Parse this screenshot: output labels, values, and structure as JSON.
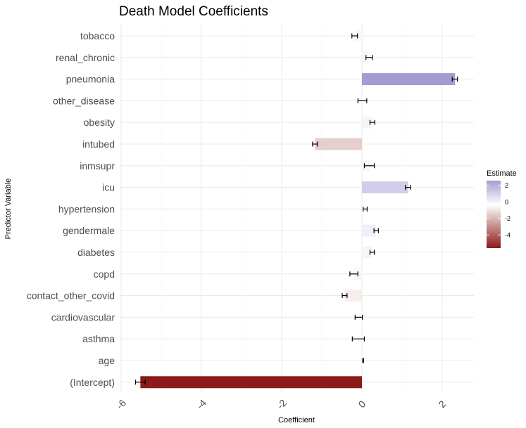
{
  "chart_data": {
    "type": "bar",
    "orientation": "horizontal",
    "title": "Death Model Coefficients",
    "xlabel": "Coefficient",
    "ylabel": "Predictor Variable",
    "xlim": [
      -6.3,
      2.8
    ],
    "x_ticks": [
      -6,
      -4,
      -2,
      0,
      2
    ],
    "x_tick_labels": [
      "-6",
      "-4",
      "-2",
      "0",
      "2"
    ],
    "grid": true,
    "legend": {
      "title": "Estimate",
      "position": "right",
      "type": "gradient",
      "ticks": [
        2,
        0,
        -2,
        -4
      ],
      "tick_labels": [
        "2",
        "0",
        "-2",
        "-4"
      ],
      "low_color": "#8b1a1a",
      "mid_color": "#ffffff",
      "high_color": "#a59bd0"
    },
    "categories": [
      "tobacco",
      "renal_chronic",
      "pneumonia",
      "other_disease",
      "obesity",
      "intubed",
      "inmsupr",
      "icu",
      "hypertension",
      "gendermale",
      "diabetes",
      "copd",
      "contact_other_covid",
      "cardiovascular",
      "asthma",
      "age",
      "(Intercept)"
    ],
    "values": [
      -0.18,
      0.18,
      2.32,
      0.01,
      0.26,
      -1.17,
      0.19,
      1.15,
      0.08,
      0.35,
      0.26,
      -0.2,
      -0.43,
      -0.08,
      -0.09,
      0.03,
      -5.52
    ],
    "error_low": [
      -0.25,
      0.1,
      2.25,
      -0.1,
      0.2,
      -1.23,
      0.06,
      1.08,
      0.03,
      0.3,
      0.2,
      -0.3,
      -0.49,
      -0.17,
      -0.24,
      0.02,
      -5.64
    ],
    "error_high": [
      -0.11,
      0.26,
      2.38,
      0.12,
      0.32,
      -1.11,
      0.31,
      1.21,
      0.13,
      0.41,
      0.31,
      -0.1,
      -0.37,
      0.01,
      0.06,
      0.04,
      -5.4
    ]
  }
}
